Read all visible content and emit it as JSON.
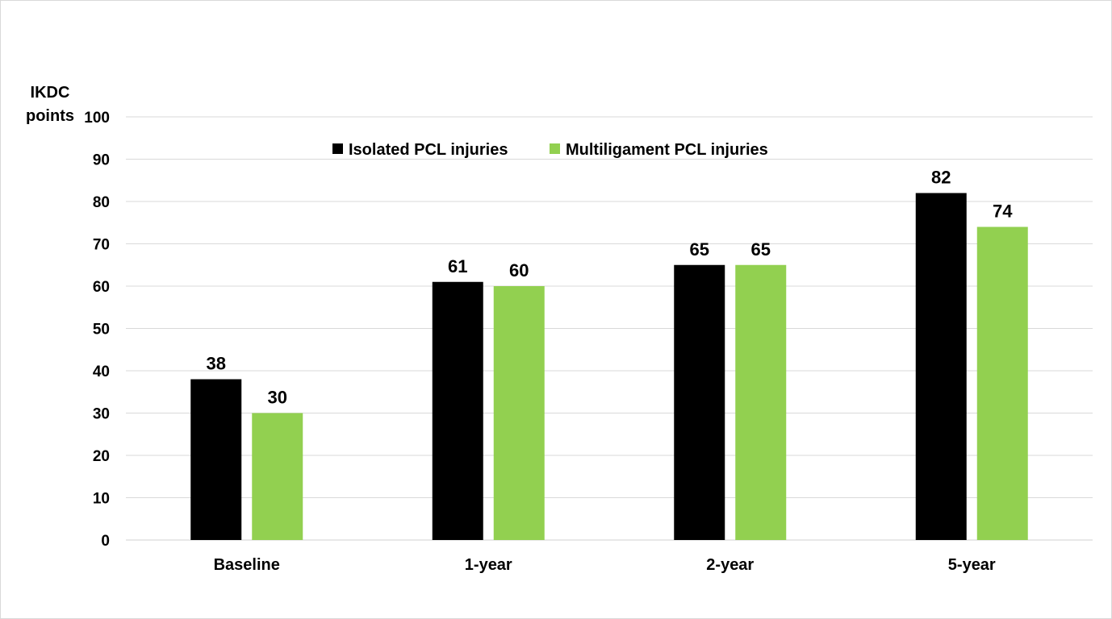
{
  "chart_data": {
    "type": "bar",
    "title": "",
    "xlabel": "",
    "ylabel_lines": [
      "IKDC",
      "points"
    ],
    "categories": [
      "Baseline",
      "1-year",
      "2-year",
      "5-year"
    ],
    "series": [
      {
        "name": "Isolated PCL injuries",
        "color": "#000000",
        "values": [
          38,
          61,
          65,
          82
        ]
      },
      {
        "name": "Multiligament PCL injuries",
        "color": "#92d050",
        "values": [
          30,
          60,
          65,
          74
        ]
      }
    ],
    "ylim": [
      0,
      100
    ],
    "yticks": [
      0,
      10,
      20,
      30,
      40,
      50,
      60,
      70,
      80,
      90,
      100
    ],
    "grid": true,
    "legend_position": "top-center",
    "data_labels": true
  }
}
